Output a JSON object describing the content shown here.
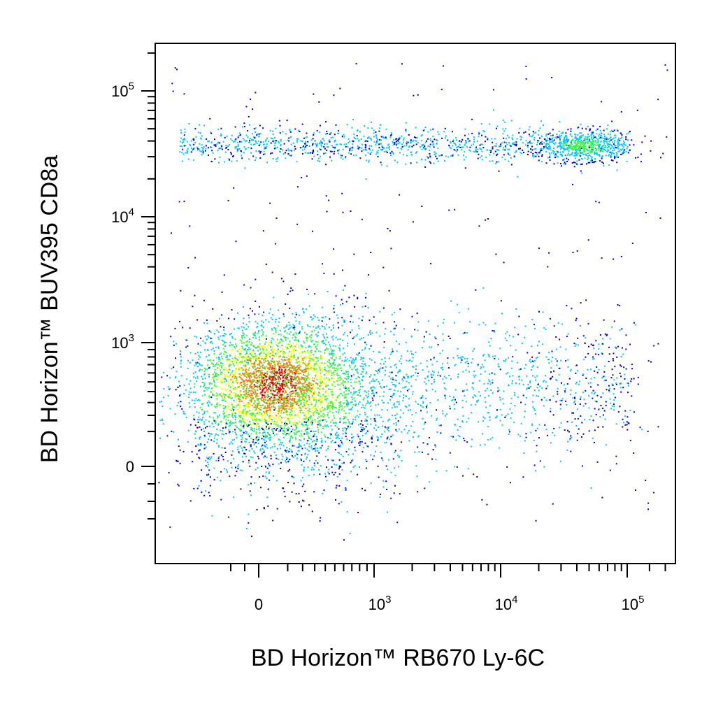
{
  "chart_data": {
    "type": "scatter",
    "subtype": "flow-cytometry-density-dot-plot",
    "xlabel": "BD Horizon™ RB670 Ly-6C",
    "ylabel": "BD Horizon™ BUV395 CD8a",
    "x_scale": "biexponential",
    "y_scale": "biexponential",
    "xlim": [
      -300,
      250000
    ],
    "ylim": [
      -400,
      200000
    ],
    "x_ticks": [
      {
        "value": 0,
        "base": "0",
        "exp": ""
      },
      {
        "value": 1000,
        "base": "10",
        "exp": "3"
      },
      {
        "value": 10000,
        "base": "10",
        "exp": "4"
      },
      {
        "value": 100000,
        "base": "10",
        "exp": "5"
      }
    ],
    "y_ticks": [
      {
        "value": 0,
        "base": "0",
        "exp": ""
      },
      {
        "value": 1000,
        "base": "10",
        "exp": "3"
      },
      {
        "value": 10000,
        "base": "10",
        "exp": "4"
      },
      {
        "value": 100000,
        "base": "10",
        "exp": "5"
      }
    ],
    "grid": false,
    "color_scale": [
      "#0000cc",
      "#00c8ff",
      "#33ff33",
      "#ffff00",
      "#ff7700",
      "#ee0000"
    ],
    "populations": [
      {
        "x_center": 40,
        "y_center": 480,
        "relative_size": "large",
        "peak_density": "high"
      },
      {
        "x_center": 400,
        "y_center": 420,
        "relative_size": "medium",
        "peak_density": "medium"
      },
      {
        "x_center": 5000,
        "y_center": 380,
        "relative_size": "small",
        "peak_density": "low"
      },
      {
        "x_center": 200,
        "y_center": 38000,
        "relative_size": "small",
        "peak_density": "low"
      },
      {
        "x_center": 45000,
        "y_center": 37000,
        "relative_size": "small",
        "peak_density": "medium"
      }
    ]
  }
}
